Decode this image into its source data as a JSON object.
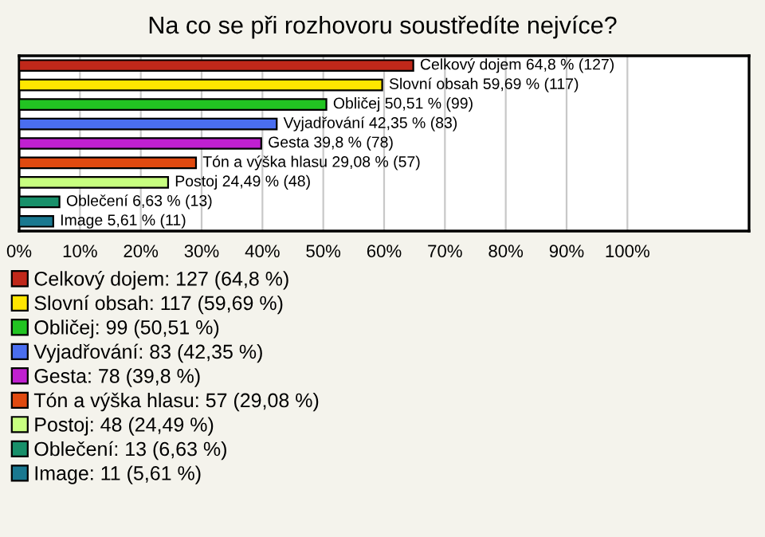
{
  "chart_data": {
    "type": "bar",
    "orientation": "horizontal",
    "title": "Na co se při rozhovoru soustředíte nejvíce?",
    "categories": [
      null,
      null,
      null,
      null,
      null,
      null,
      null,
      null,
      null
    ],
    "series": [
      {
        "name": "Celkový dojem: 127 (64,8 %)",
        "color": "#c0281a",
        "values": [
          64.8,
          null,
          null,
          null,
          null,
          null,
          null,
          null,
          null
        ],
        "value_labels": [
          "Celkový dojem 64,8 % (127)",
          null,
          null,
          null,
          null,
          null,
          null,
          null,
          null
        ]
      },
      {
        "name": "Slovní obsah: 117 (59,69 %)",
        "color": "#ffe600",
        "values": [
          null,
          59.69,
          null,
          null,
          null,
          null,
          null,
          null,
          null
        ],
        "value_labels": [
          null,
          "Slovní obsah 59,69 % (117)",
          null,
          null,
          null,
          null,
          null,
          null,
          null
        ]
      },
      {
        "name": "Obličej: 99 (50,51 %)",
        "color": "#22c422",
        "values": [
          null,
          null,
          50.51,
          null,
          null,
          null,
          null,
          null,
          null
        ],
        "value_labels": [
          null,
          null,
          "Obličej 50,51 % (99)",
          null,
          null,
          null,
          null,
          null,
          null
        ]
      },
      {
        "name": "Vyjadřování: 83 (42,35 %)",
        "color": "#4a6ef0",
        "values": [
          null,
          null,
          null,
          42.35,
          null,
          null,
          null,
          null,
          null
        ],
        "value_labels": [
          null,
          null,
          null,
          "Vyjadřování 42,35 % (83)",
          null,
          null,
          null,
          null,
          null
        ]
      },
      {
        "name": "Gesta: 78 (39,8 %)",
        "color": "#c020d0",
        "values": [
          null,
          null,
          null,
          null,
          39.8,
          null,
          null,
          null,
          null
        ],
        "value_labels": [
          null,
          null,
          null,
          null,
          "Gesta 39,8 % (78)",
          null,
          null,
          null,
          null
        ]
      },
      {
        "name": "Tón a výška hlasu: 57 (29,08 %)",
        "color": "#e04a10",
        "values": [
          null,
          null,
          null,
          null,
          null,
          29.08,
          null,
          null,
          null
        ],
        "value_labels": [
          null,
          null,
          null,
          null,
          null,
          "Tón a výška hlasu 29,08 % (57)",
          null,
          null,
          null
        ]
      },
      {
        "name": "Postoj: 48 (24,49 %)",
        "color": "#c8ff80",
        "values": [
          null,
          null,
          null,
          null,
          null,
          null,
          24.49,
          null,
          null
        ],
        "value_labels": [
          null,
          null,
          null,
          null,
          null,
          null,
          "Postoj 24,49 % (48)",
          null,
          null
        ]
      },
      {
        "name": "Oblečení: 13 (6,63 %)",
        "color": "#18906a",
        "values": [
          null,
          null,
          null,
          null,
          null,
          null,
          null,
          6.63,
          null
        ],
        "value_labels": [
          null,
          null,
          null,
          null,
          null,
          null,
          null,
          "Oblečení 6,63 % (13)",
          null
        ]
      },
      {
        "name": "Image: 11 (5,61 %)",
        "color": "#1a7890",
        "values": [
          null,
          null,
          null,
          null,
          null,
          null,
          null,
          null,
          5.61
        ],
        "value_labels": [
          null,
          null,
          null,
          null,
          null,
          null,
          null,
          null,
          "Image 5,61 % (11)"
        ]
      }
    ],
    "xlim": [
      0,
      120
    ],
    "xticks": [
      {
        "value": 0,
        "label": "0%"
      },
      {
        "value": 10,
        "label": "10%"
      },
      {
        "value": 20,
        "label": "20%"
      },
      {
        "value": 30,
        "label": "30%"
      },
      {
        "value": 40,
        "label": "40%"
      },
      {
        "value": 50,
        "label": "50%"
      },
      {
        "value": 60,
        "label": "60%"
      },
      {
        "value": 70,
        "label": "70%"
      },
      {
        "value": 80,
        "label": "80%"
      },
      {
        "value": 90,
        "label": "90%"
      },
      {
        "value": 100,
        "label": "100%"
      }
    ],
    "grid": "x",
    "legend": "bottom"
  }
}
